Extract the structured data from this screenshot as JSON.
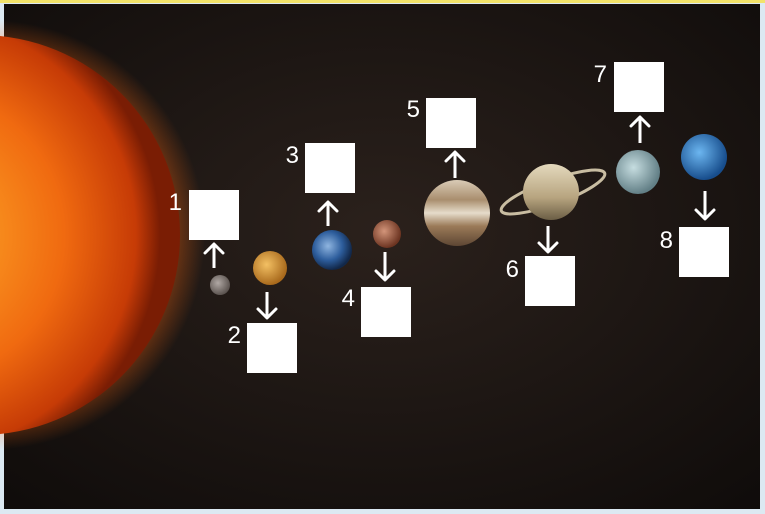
{
  "labels": [
    "1",
    "2",
    "3",
    "4",
    "5",
    "6",
    "7",
    "8"
  ]
}
